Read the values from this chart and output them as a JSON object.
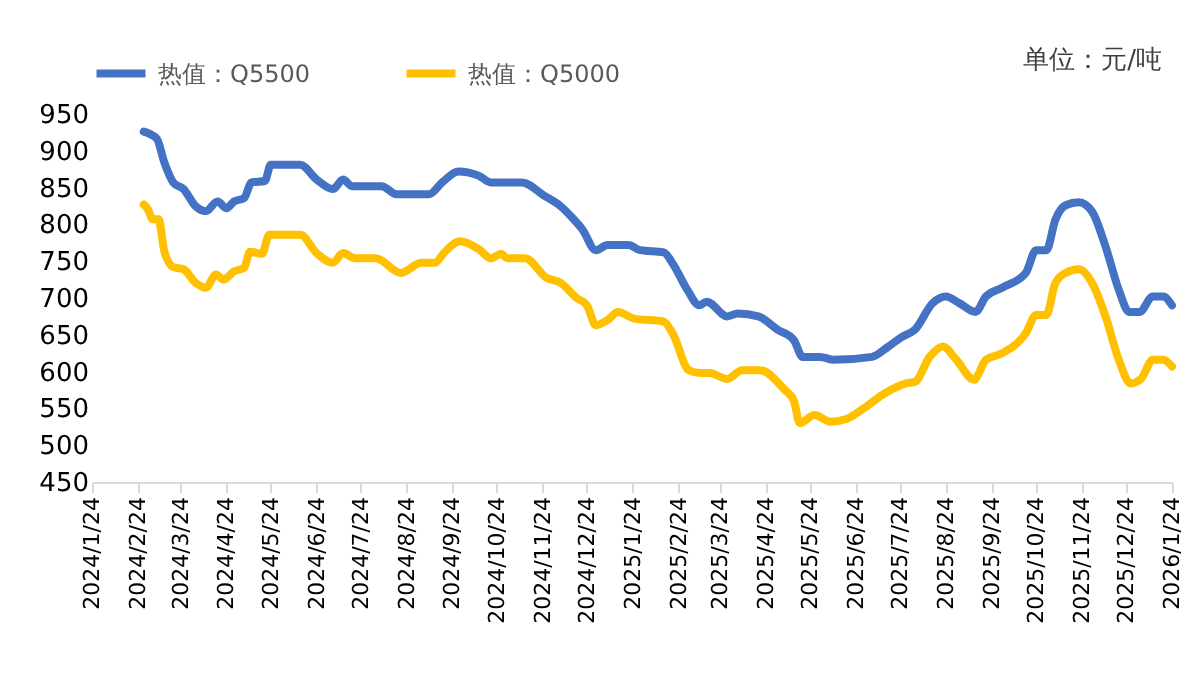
{
  "chart_data": {
    "type": "line",
    "annotations": [
      "单位：元/吨"
    ],
    "xlim": [
      "2024-01-24",
      "2026-01-24"
    ],
    "xticks": [
      {
        "value": "2024-01-24",
        "label": "2024/1/24"
      },
      {
        "value": "2024-02-24",
        "label": "2024/2/24"
      },
      {
        "value": "2024-03-24",
        "label": "2024/3/24"
      },
      {
        "value": "2024-04-24",
        "label": "2024/4/24"
      },
      {
        "value": "2024-05-24",
        "label": "2024/5/24"
      },
      {
        "value": "2024-06-24",
        "label": "2024/6/24"
      },
      {
        "value": "2024-07-24",
        "label": "2024/7/24"
      },
      {
        "value": "2024-08-24",
        "label": "2024/8/24"
      },
      {
        "value": "2024-09-24",
        "label": "2024/9/24"
      },
      {
        "value": "2024-10-24",
        "label": "2024/10/24"
      },
      {
        "value": "2024-11-24",
        "label": "2024/11/24"
      },
      {
        "value": "2024-12-24",
        "label": "2024/12/24"
      },
      {
        "value": "2025-01-24",
        "label": "2025/1/24"
      },
      {
        "value": "2025-02-24",
        "label": "2025/2/24"
      },
      {
        "value": "2025-03-24",
        "label": "2025/3/24"
      },
      {
        "value": "2025-04-24",
        "label": "2025/4/24"
      },
      {
        "value": "2025-05-24",
        "label": "2025/5/24"
      },
      {
        "value": "2025-06-24",
        "label": "2025/6/24"
      },
      {
        "value": "2025-07-24",
        "label": "2025/7/24"
      },
      {
        "value": "2025-08-24",
        "label": "2025/8/24"
      },
      {
        "value": "2025-09-24",
        "label": "2025/9/24"
      },
      {
        "value": "2025-10-24",
        "label": "2025/10/24"
      },
      {
        "value": "2025-11-24",
        "label": "2025/11/24"
      },
      {
        "value": "2025-12-24",
        "label": "2025/12/24"
      },
      {
        "value": "2026-01-24",
        "label": "2026/1/24"
      }
    ],
    "ylim": [
      450,
      950
    ],
    "yticks": [
      450,
      500,
      550,
      600,
      650,
      700,
      750,
      800,
      850,
      900,
      950
    ],
    "grid": false,
    "legend": "top",
    "marker": "none",
    "line_style": "solid",
    "series": [
      {
        "name": "热值：Q5500",
        "color": "#4472c4",
        "x": [
          "2024-02-28",
          "2024-03-03",
          "2024-03-08",
          "2024-03-13",
          "2024-03-19",
          "2024-03-26",
          "2024-04-03",
          "2024-04-10",
          "2024-04-18",
          "2024-04-24",
          "2024-04-29",
          "2024-05-06",
          "2024-05-11",
          "2024-05-20",
          "2024-05-24",
          "2024-06-13",
          "2024-06-24",
          "2024-07-05",
          "2024-07-12",
          "2024-07-18",
          "2024-08-07",
          "2024-08-17",
          "2024-09-08",
          "2024-09-17",
          "2024-09-28",
          "2024-10-12",
          "2024-10-20",
          "2024-11-10",
          "2024-11-25",
          "2024-12-06",
          "2024-12-15",
          "2024-12-21",
          "2024-12-30",
          "2025-01-07",
          "2025-01-21",
          "2025-01-29",
          "2025-02-14",
          "2025-02-20",
          "2025-03-02",
          "2025-03-10",
          "2025-03-15",
          "2025-03-29",
          "2025-04-05",
          "2025-04-19",
          "2025-05-02",
          "2025-05-13",
          "2025-05-19",
          "2025-05-31",
          "2025-06-09",
          "2025-07-05",
          "2025-07-16",
          "2025-07-25",
          "2025-08-03",
          "2025-08-15",
          "2025-08-24",
          "2025-09-02",
          "2025-09-13",
          "2025-09-20",
          "2025-10-01",
          "2025-10-17",
          "2025-10-24",
          "2025-10-31",
          "2025-11-06",
          "2025-11-13",
          "2025-11-22",
          "2025-12-01",
          "2025-12-10",
          "2025-12-19",
          "2025-12-26",
          "2026-01-02",
          "2026-01-11",
          "2026-01-18",
          "2026-01-24"
        ],
        "values": [
          926,
          923,
          916,
          884,
          857,
          848,
          825,
          818,
          831,
          822,
          831,
          836,
          857,
          859,
          881,
          881,
          861,
          848,
          861,
          852,
          852,
          841,
          841,
          857,
          872,
          866,
          857,
          857,
          839,
          825,
          807,
          793,
          765,
          772,
          772,
          765,
          762,
          747,
          711,
          690,
          695,
          675,
          679,
          675,
          657,
          643,
          620,
          620,
          616,
          620,
          634,
          647,
          657,
          693,
          702,
          693,
          681,
          702,
          714,
          734,
          765,
          765,
          806,
          826,
          830,
          817,
          770,
          711,
          681,
          681,
          702,
          702,
          690
        ]
      },
      {
        "name": "热值：Q5000",
        "color": "#ffc000",
        "x": [
          "2024-02-28",
          "2024-03-02",
          "2024-03-05",
          "2024-03-09",
          "2024-03-13",
          "2024-03-19",
          "2024-03-26",
          "2024-04-03",
          "2024-04-10",
          "2024-04-17",
          "2024-04-22",
          "2024-04-29",
          "2024-05-06",
          "2024-05-10",
          "2024-05-18",
          "2024-05-23",
          "2024-06-13",
          "2024-06-24",
          "2024-07-05",
          "2024-07-12",
          "2024-07-20",
          "2024-08-03",
          "2024-08-20",
          "2024-09-03",
          "2024-09-12",
          "2024-09-19",
          "2024-09-29",
          "2024-10-12",
          "2024-10-20",
          "2024-10-27",
          "2024-10-31",
          "2024-11-12",
          "2024-11-27",
          "2024-12-06",
          "2024-12-17",
          "2024-12-24",
          "2024-12-30",
          "2025-01-07",
          "2025-01-14",
          "2025-01-25",
          "2025-02-14",
          "2025-02-20",
          "2025-03-03",
          "2025-03-11",
          "2025-03-17",
          "2025-03-29",
          "2025-04-08",
          "2025-04-20",
          "2025-05-07",
          "2025-05-13",
          "2025-05-17",
          "2025-05-27",
          "2025-06-07",
          "2025-06-18",
          "2025-06-30",
          "2025-07-14",
          "2025-07-28",
          "2025-08-03",
          "2025-08-13",
          "2025-08-22",
          "2025-08-31",
          "2025-09-12",
          "2025-09-20",
          "2025-10-01",
          "2025-10-17",
          "2025-10-24",
          "2025-10-31",
          "2025-11-06",
          "2025-11-13",
          "2025-11-22",
          "2025-12-01",
          "2025-12-10",
          "2025-12-19",
          "2025-12-27",
          "2026-01-03",
          "2026-01-11",
          "2026-01-18",
          "2026-01-24"
        ],
        "values": [
          827,
          820,
          807,
          807,
          763,
          742,
          739,
          721,
          714,
          732,
          725,
          736,
          741,
          763,
          760,
          786,
          786,
          761,
          748,
          761,
          754,
          754,
          734,
          748,
          748,
          763,
          777,
          766,
          754,
          760,
          754,
          754,
          727,
          721,
          700,
          690,
          663,
          670,
          681,
          672,
          668,
          652,
          602,
          598,
          598,
          590,
          602,
          602,
          575,
          561,
          530,
          541,
          532,
          536,
          551,
          571,
          584,
          586,
          620,
          634,
          616,
          589,
          616,
          625,
          652,
          677,
          677,
          720,
          734,
          739,
          720,
          675,
          616,
          584,
          590,
          616,
          616,
          607
        ]
      }
    ]
  }
}
